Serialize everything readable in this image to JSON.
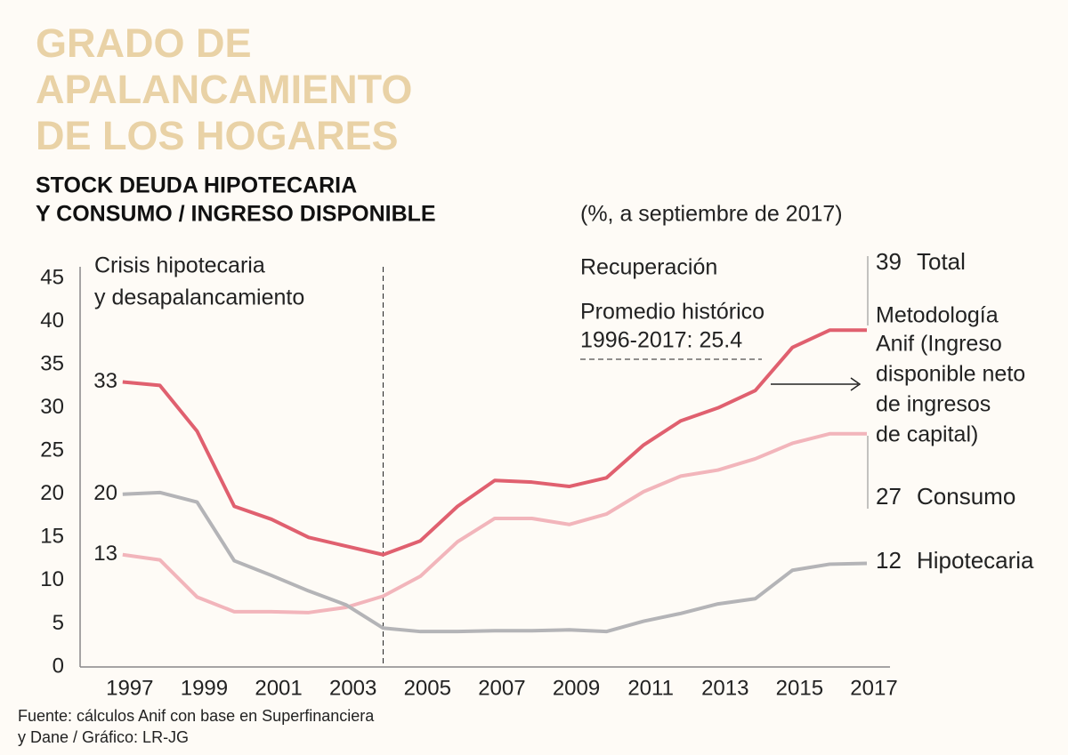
{
  "chart_data": {
    "type": "line",
    "title": [
      "GRADO DE",
      "APALANCAMIENTO",
      "DE LOS HOGARES"
    ],
    "subtitle": [
      "STOCK DEUDA HIPOTECARIA",
      "Y CONSUMO / INGRESO DISPONIBLE"
    ],
    "units": "(%, a septiembre de 2017)",
    "x": [
      1997,
      1998,
      1999,
      2000,
      2001,
      2002,
      2003,
      2004,
      2005,
      2006,
      2007,
      2008,
      2009,
      2010,
      2011,
      2012,
      2013,
      2014,
      2015,
      2016,
      2017
    ],
    "xlim": [
      1996,
      2017
    ],
    "xticks": [
      1997,
      1999,
      2001,
      2003,
      2005,
      2007,
      2009,
      2011,
      2013,
      2015,
      2017
    ],
    "ylim": [
      0,
      45
    ],
    "yticks": [
      0,
      5,
      10,
      15,
      20,
      25,
      30,
      35,
      40,
      45
    ],
    "series": [
      {
        "name": "Total",
        "color": "#e0606f",
        "values": [
          33,
          32.6,
          27.3,
          18.6,
          17.1,
          15,
          14,
          13,
          14.6,
          18.6,
          21.6,
          21.4,
          20.9,
          21.9,
          25.7,
          28.5,
          30,
          32,
          37,
          39,
          39
        ]
      },
      {
        "name": "Consumo",
        "color": "#f2b5bb",
        "values": [
          13,
          12.4,
          8.1,
          6.4,
          6.4,
          6.3,
          6.9,
          8.2,
          10.5,
          14.5,
          17.2,
          17.2,
          16.5,
          17.7,
          20.3,
          22.1,
          22.8,
          24.1,
          25.9,
          27,
          27
        ]
      },
      {
        "name": "Hipotecaria",
        "color": "#b4b4b7",
        "values": [
          20,
          20.2,
          19.1,
          12.3,
          10.6,
          8.8,
          7.2,
          4.5,
          4.1,
          4.1,
          4.2,
          4.2,
          4.3,
          4.1,
          5.3,
          6.2,
          7.3,
          7.9,
          11.2,
          11.9,
          12
        ]
      }
    ],
    "divider_x": 2004,
    "annotations": {
      "crisis": [
        "Crisis hipotecaria",
        "y desapalancamiento"
      ],
      "recovery": "Recuperación",
      "average": [
        "Promedio histórico",
        "1996-2017: 25.4"
      ],
      "method": [
        "Metodología",
        "Anif (Ingreso",
        "disponible neto",
        "de ingresos",
        "de capital)"
      ]
    },
    "source": [
      "Fuente: cálculos Anif con base en Superfinanciera",
      "y Dane / Gráfico: LR-JG"
    ]
  }
}
